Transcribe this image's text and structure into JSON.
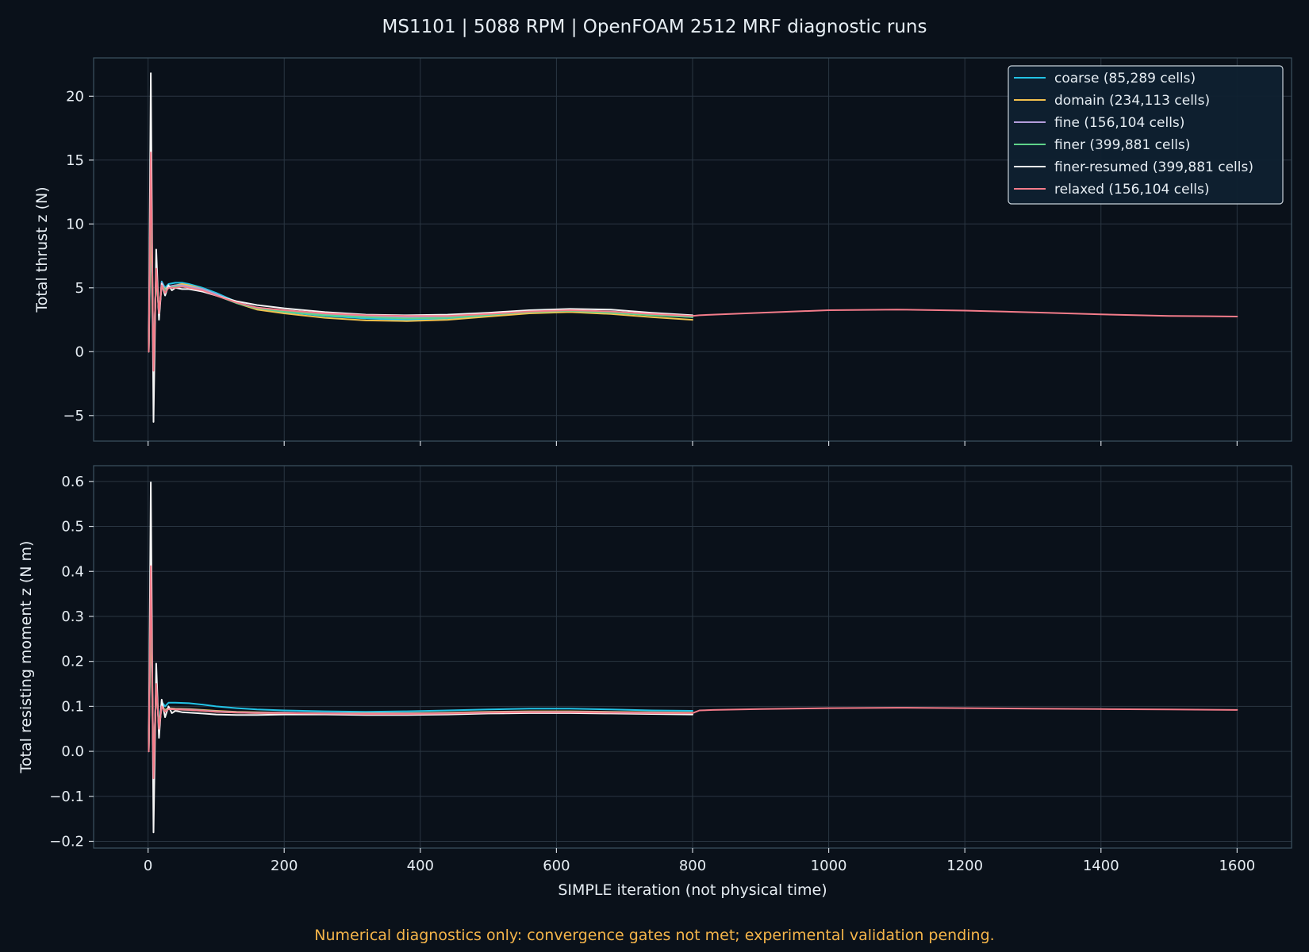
{
  "figure": {
    "title": "MS1101 | 5088 RPM | OpenFOAM 2512 MRF diagnostic runs",
    "footnote": "Numerical diagnostics only: convergence gates not met; experimental validation pending.",
    "colors": {
      "background": "#0a111a",
      "footnote": "#f5b54a"
    }
  },
  "chart_data": [
    {
      "type": "line",
      "title": "",
      "xlabel": "",
      "ylabel": "Total thrust z (N)",
      "xlim": [
        -80,
        1680
      ],
      "ylim": [
        -7,
        23
      ],
      "xticks": [
        0,
        200,
        400,
        600,
        800,
        1000,
        1200,
        1400,
        1600
      ],
      "yticks": [
        -5,
        0,
        5,
        10,
        15,
        20
      ],
      "grid": true,
      "legend": "top-right",
      "series": [
        {
          "name": "coarse (85,289 cells)",
          "color": "#22c3e6",
          "x": [
            1,
            4,
            8,
            12,
            16,
            20,
            25,
            30,
            40,
            50,
            60,
            80,
            100,
            130,
            160,
            200,
            260,
            320,
            380,
            440,
            500,
            560,
            620,
            680,
            740,
            800
          ],
          "y": [
            0,
            10,
            -1.5,
            6.5,
            2.8,
            5.5,
            5.0,
            5.3,
            5.4,
            5.4,
            5.3,
            5.0,
            4.6,
            3.9,
            3.4,
            3.1,
            2.8,
            2.6,
            2.5,
            2.6,
            2.85,
            3.1,
            3.25,
            3.1,
            2.9,
            2.7
          ]
        },
        {
          "name": "domain (234,113 cells)",
          "color": "#f2c14e",
          "x": [
            1,
            4,
            8,
            12,
            16,
            20,
            25,
            30,
            40,
            50,
            60,
            80,
            100,
            130,
            160,
            200,
            260,
            320,
            380,
            440,
            500,
            560,
            620,
            680,
            740,
            800
          ],
          "y": [
            0,
            11,
            -1.0,
            6.2,
            3.0,
            5.3,
            4.9,
            5.1,
            5.2,
            5.3,
            5.2,
            4.9,
            4.5,
            3.8,
            3.3,
            3.0,
            2.65,
            2.45,
            2.4,
            2.5,
            2.75,
            3.0,
            3.1,
            2.95,
            2.7,
            2.5
          ]
        },
        {
          "name": "fine (156,104 cells)",
          "color": "#b39ddb",
          "x": [
            1,
            4,
            8,
            12,
            16,
            20,
            25,
            30,
            40,
            50,
            60,
            80,
            100,
            130,
            160,
            200,
            260,
            320,
            380,
            440,
            500,
            560,
            620,
            680,
            740,
            800
          ],
          "y": [
            0,
            14,
            -1.2,
            6.5,
            2.8,
            5.4,
            4.8,
            5.1,
            5.2,
            5.2,
            5.1,
            4.9,
            4.5,
            3.85,
            3.45,
            3.2,
            2.9,
            2.75,
            2.7,
            2.75,
            2.95,
            3.15,
            3.25,
            3.1,
            2.9,
            2.75
          ]
        },
        {
          "name": "finer (399,881 cells)",
          "color": "#5fd38a",
          "x": [
            1,
            4,
            8,
            12,
            16,
            20,
            25,
            30,
            40,
            50,
            60,
            80,
            100,
            130,
            160,
            200,
            260,
            320,
            380,
            440,
            500,
            560,
            620,
            680,
            740,
            800
          ],
          "y": [
            0,
            13,
            -1.0,
            6.0,
            3.0,
            5.2,
            4.8,
            5.0,
            5.1,
            5.1,
            5.0,
            4.8,
            4.4,
            3.8,
            3.4,
            3.15,
            2.85,
            2.7,
            2.6,
            2.65,
            2.9,
            3.1,
            3.2,
            3.05,
            2.85,
            2.7
          ]
        },
        {
          "name": "finer-resumed (399,881 cells)",
          "color": "#f5f5f5",
          "x": [
            1,
            4,
            8,
            12,
            16,
            20,
            25,
            30,
            35,
            40,
            50,
            60,
            80,
            100,
            130,
            160,
            200,
            260,
            320,
            380,
            440,
            500,
            560,
            620,
            680,
            740,
            800
          ],
          "y": [
            0,
            21.8,
            -5.5,
            8.0,
            2.5,
            5.3,
            4.4,
            5.2,
            4.8,
            5.0,
            4.9,
            4.9,
            4.7,
            4.4,
            3.95,
            3.65,
            3.4,
            3.1,
            2.9,
            2.85,
            2.9,
            3.05,
            3.25,
            3.35,
            3.3,
            3.05,
            2.85
          ]
        },
        {
          "name": "relaxed (156,104 cells)",
          "color": "#f47c8a",
          "x": [
            1,
            4,
            8,
            12,
            16,
            20,
            25,
            30,
            40,
            50,
            60,
            80,
            100,
            130,
            160,
            200,
            260,
            320,
            380,
            440,
            500,
            560,
            620,
            680,
            740,
            800,
            810,
            830,
            900,
            1000,
            1100,
            1200,
            1300,
            1400,
            1500,
            1600
          ],
          "y": [
            0,
            15.6,
            -1.5,
            6.5,
            3.0,
            5.2,
            4.6,
            5.0,
            5.0,
            5.1,
            5.0,
            4.8,
            4.4,
            3.85,
            3.45,
            3.25,
            3.0,
            2.85,
            2.8,
            2.8,
            2.95,
            3.15,
            3.25,
            3.15,
            2.95,
            2.8,
            2.85,
            2.9,
            3.05,
            3.25,
            3.3,
            3.22,
            3.08,
            2.92,
            2.8,
            2.75
          ]
        }
      ]
    },
    {
      "type": "line",
      "title": "",
      "xlabel": "SIMPLE iteration (not physical time)",
      "ylabel": "Total resisting moment z (N m)",
      "xlim": [
        -80,
        1680
      ],
      "ylim": [
        -0.215,
        0.635
      ],
      "xticks": [
        0,
        200,
        400,
        600,
        800,
        1000,
        1200,
        1400,
        1600
      ],
      "yticks": [
        -0.2,
        -0.1,
        0.0,
        0.1,
        0.2,
        0.3,
        0.4,
        0.5,
        0.6
      ],
      "grid": true,
      "series": [
        {
          "name": "coarse (85,289 cells)",
          "color": "#22c3e6",
          "x": [
            1,
            4,
            8,
            12,
            16,
            20,
            25,
            30,
            40,
            60,
            80,
            100,
            130,
            160,
            200,
            260,
            320,
            380,
            440,
            500,
            560,
            620,
            680,
            740,
            800
          ],
          "y": [
            0,
            0.3,
            -0.04,
            0.15,
            0.06,
            0.11,
            0.1,
            0.108,
            0.108,
            0.107,
            0.104,
            0.1,
            0.096,
            0.093,
            0.091,
            0.089,
            0.088,
            0.089,
            0.091,
            0.093,
            0.095,
            0.095,
            0.093,
            0.091,
            0.09
          ]
        },
        {
          "name": "domain (234,113 cells)",
          "color": "#f2c14e",
          "x": [
            1,
            4,
            8,
            12,
            16,
            20,
            25,
            30,
            40,
            60,
            80,
            100,
            130,
            160,
            200,
            260,
            320,
            380,
            440,
            500,
            560,
            620,
            680,
            740,
            800
          ],
          "y": [
            0,
            0.32,
            -0.04,
            0.14,
            0.06,
            0.1,
            0.092,
            0.096,
            0.095,
            0.094,
            0.092,
            0.09,
            0.088,
            0.087,
            0.086,
            0.085,
            0.085,
            0.085,
            0.086,
            0.088,
            0.089,
            0.089,
            0.088,
            0.087,
            0.086
          ]
        },
        {
          "name": "fine (156,104 cells)",
          "color": "#b39ddb",
          "x": [
            1,
            4,
            8,
            12,
            16,
            20,
            25,
            30,
            40,
            60,
            80,
            100,
            130,
            160,
            200,
            260,
            320,
            380,
            440,
            500,
            560,
            620,
            680,
            740,
            800
          ],
          "y": [
            0,
            0.38,
            -0.05,
            0.15,
            0.05,
            0.1,
            0.09,
            0.095,
            0.094,
            0.093,
            0.091,
            0.089,
            0.087,
            0.086,
            0.086,
            0.085,
            0.084,
            0.084,
            0.085,
            0.087,
            0.088,
            0.088,
            0.087,
            0.086,
            0.085
          ]
        },
        {
          "name": "finer (399,881 cells)",
          "color": "#5fd38a",
          "x": [
            1,
            4,
            8,
            12,
            16,
            20,
            25,
            30,
            40,
            60,
            80,
            100,
            130,
            160,
            200,
            260,
            320,
            380,
            440,
            500,
            560,
            620,
            680,
            740,
            800
          ],
          "y": [
            0,
            0.36,
            -0.05,
            0.14,
            0.06,
            0.1,
            0.09,
            0.094,
            0.093,
            0.092,
            0.09,
            0.088,
            0.086,
            0.085,
            0.085,
            0.084,
            0.083,
            0.083,
            0.084,
            0.086,
            0.087,
            0.087,
            0.086,
            0.085,
            0.084
          ]
        },
        {
          "name": "finer-resumed (399,881 cells)",
          "color": "#f5f5f5",
          "x": [
            1,
            4,
            8,
            12,
            16,
            20,
            25,
            30,
            35,
            40,
            50,
            60,
            80,
            100,
            130,
            160,
            200,
            260,
            320,
            380,
            440,
            500,
            560,
            620,
            680,
            740,
            800
          ],
          "y": [
            0,
            0.598,
            -0.18,
            0.195,
            0.03,
            0.115,
            0.076,
            0.1,
            0.085,
            0.09,
            0.087,
            0.086,
            0.084,
            0.082,
            0.081,
            0.081,
            0.082,
            0.082,
            0.081,
            0.081,
            0.082,
            0.084,
            0.085,
            0.085,
            0.084,
            0.083,
            0.082
          ]
        },
        {
          "name": "relaxed (156,104 cells)",
          "color": "#f47c8a",
          "x": [
            1,
            4,
            8,
            12,
            16,
            20,
            25,
            30,
            40,
            60,
            80,
            100,
            130,
            160,
            200,
            260,
            320,
            380,
            440,
            500,
            560,
            620,
            680,
            740,
            800,
            810,
            830,
            900,
            1000,
            1100,
            1200,
            1300,
            1400,
            1500,
            1600
          ],
          "y": [
            0,
            0.412,
            -0.06,
            0.15,
            0.05,
            0.1,
            0.088,
            0.094,
            0.093,
            0.092,
            0.09,
            0.088,
            0.086,
            0.085,
            0.085,
            0.084,
            0.083,
            0.083,
            0.084,
            0.086,
            0.087,
            0.087,
            0.086,
            0.085,
            0.085,
            0.091,
            0.092,
            0.094,
            0.096,
            0.097,
            0.096,
            0.095,
            0.094,
            0.093,
            0.092
          ]
        }
      ]
    }
  ]
}
